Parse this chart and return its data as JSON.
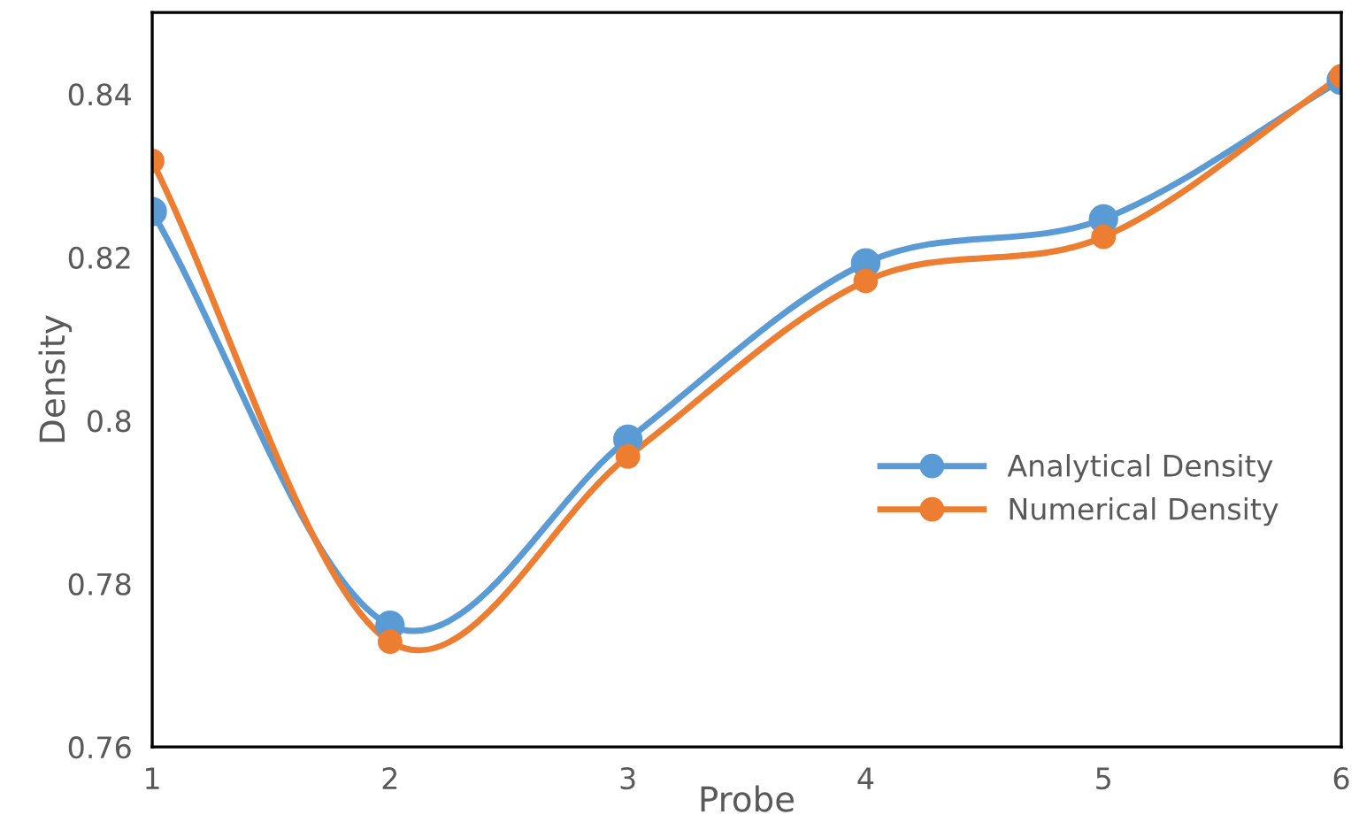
{
  "chart_data": {
    "type": "line",
    "xlabel": "Probe",
    "ylabel": "Density",
    "x": [
      1,
      2,
      3,
      4,
      5,
      6
    ],
    "series": [
      {
        "name": "Analytical Density",
        "color": "#5b9bd5",
        "values": [
          0.8256,
          0.7749,
          0.7977,
          0.8193,
          0.8247,
          0.8417
        ]
      },
      {
        "name": "Numerical Density",
        "color": "#ed7d31",
        "values": [
          0.8318,
          0.7729,
          0.7956,
          0.8171,
          0.8225,
          0.8422
        ]
      }
    ],
    "xlim": [
      1,
      6
    ],
    "xticks": [
      1,
      2,
      3,
      4,
      5,
      6
    ],
    "ylim": [
      0.76,
      0.85
    ],
    "yticks": [
      0.76,
      0.78,
      0.8,
      0.82,
      0.84
    ],
    "grid": false,
    "legend": "right",
    "marker": "circle",
    "line_style": "solid"
  }
}
